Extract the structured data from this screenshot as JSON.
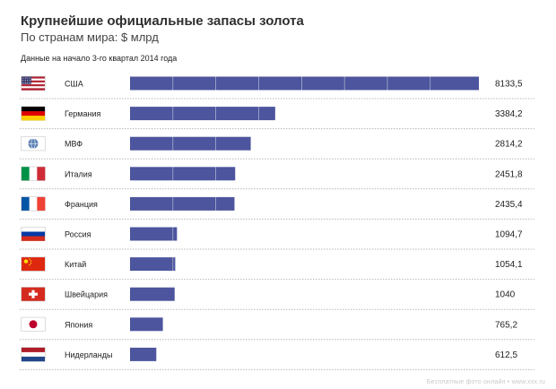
{
  "header": {
    "title": "Крупнейшие официальные запасы золота",
    "subtitle": "По странам мира: $ млрд",
    "note": "Данные на начало 3-го квартал 2014 года"
  },
  "watermark": "Бесплатные фото онлайн • www.xxx.ru",
  "chart_data": {
    "type": "bar",
    "orientation": "horizontal",
    "title": "Крупнейшие официальные запасы золота",
    "subtitle": "По странам мира: $ млрд",
    "categories": [
      "США",
      "Германия",
      "МВФ",
      "Италия",
      "Франция",
      "Россия",
      "Китай",
      "Швейцария",
      "Япония",
      "Нидерланды"
    ],
    "values": [
      8133.5,
      3384.2,
      2814.2,
      2451.8,
      2435.4,
      1094.7,
      1054.1,
      1040,
      765.2,
      612.5
    ],
    "value_labels": [
      "8133,5",
      "3384,2",
      "2814,2",
      "2451,8",
      "2435,4",
      "1094,7",
      "1054,1",
      "1040",
      "765,2",
      "612,5"
    ],
    "flags": [
      "usa-flag-icon",
      "germany-flag-icon",
      "imf-flag-icon",
      "italy-flag-icon",
      "france-flag-icon",
      "russia-flag-icon",
      "china-flag-icon",
      "switzerland-flag-icon",
      "japan-flag-icon",
      "netherlands-flag-icon"
    ],
    "xlim": [
      0,
      8133.5
    ],
    "bar_color": "#4c559d",
    "grid": false
  }
}
